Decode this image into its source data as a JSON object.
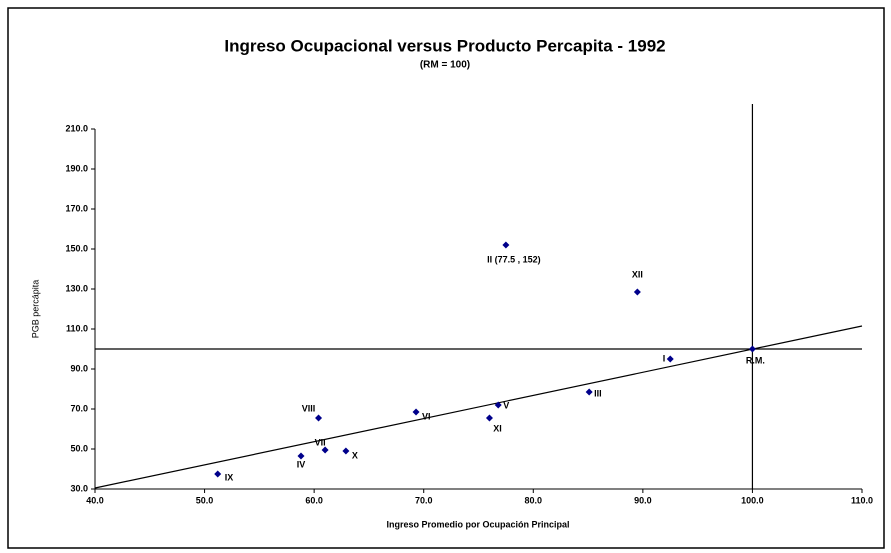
{
  "chart_data": {
    "type": "scatter",
    "title": "Ingreso Ocupacional versus Producto Percapita - 1992",
    "subtitle": "(RM = 100)",
    "x_label": "Ingreso Promedio por Ocupación Principal",
    "y_label": "PGB percápita",
    "color": "#00008b",
    "labels": [
      "IX",
      "IV",
      "VII",
      "VIII",
      "X",
      "VI",
      "XI",
      "V",
      "II (77.5 ,  152)",
      "III",
      "XII",
      "I",
      "R.M."
    ],
    "x": [
      51.2,
      58.8,
      61.0,
      60.4,
      62.9,
      69.3,
      76.0,
      76.8,
      77.5,
      85.1,
      89.5,
      92.5,
      100
    ],
    "y": [
      37.5,
      46.5,
      49.5,
      65.5,
      49,
      68.5,
      65.5,
      72,
      152,
      78.5,
      128.5,
      95,
      100
    ],
    "xlim": [
      40,
      110
    ],
    "ylim": [
      30,
      210
    ],
    "xticks": [
      {
        "value": 40,
        "label": "40.0"
      },
      {
        "value": 50,
        "label": "50.0"
      },
      {
        "value": 60,
        "label": "60.0"
      },
      {
        "value": 70,
        "label": "70.0"
      },
      {
        "value": 80,
        "label": "80.0"
      },
      {
        "value": 90,
        "label": "90.0"
      },
      {
        "value": 100,
        "label": "100.0"
      },
      {
        "value": 110,
        "label": "110.0"
      }
    ],
    "yticks": [
      {
        "value": 30,
        "label": "30.0"
      },
      {
        "value": 50,
        "label": "50.0"
      },
      {
        "value": 70,
        "label": "70.0"
      },
      {
        "value": 90,
        "label": "90.0"
      },
      {
        "value": 110,
        "label": "110.0"
      },
      {
        "value": 130,
        "label": "130.0"
      },
      {
        "value": 150,
        "label": "150.0"
      },
      {
        "value": 170,
        "label": "170.0"
      },
      {
        "value": 190,
        "label": "190.0"
      },
      {
        "value": 210,
        "label": "210.0"
      }
    ],
    "hlines": [
      100
    ],
    "vlines": [
      100
    ],
    "trendline": {
      "x": [
        40,
        110
      ],
      "y": [
        30.5,
        111.5
      ]
    }
  }
}
